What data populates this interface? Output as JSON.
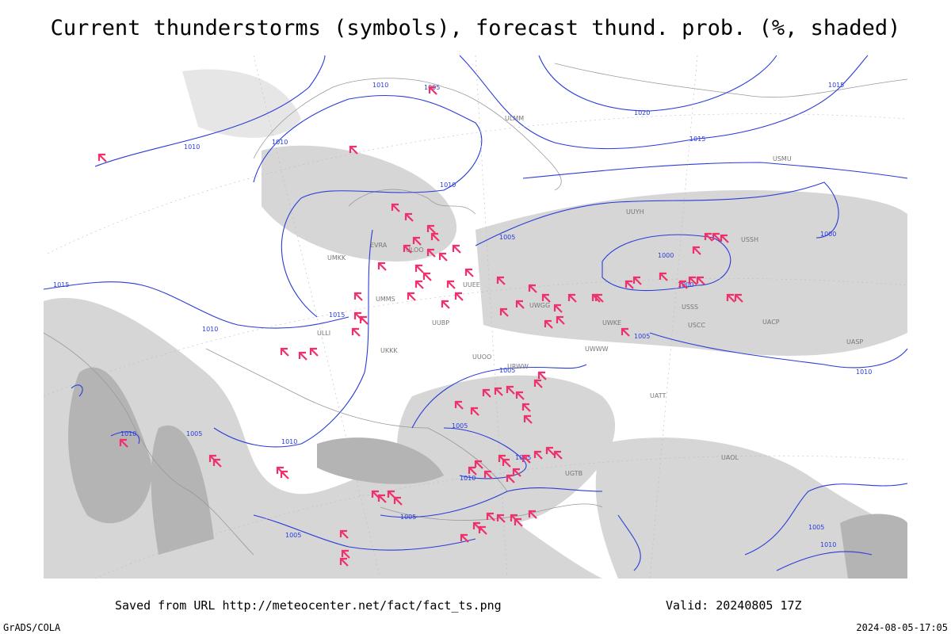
{
  "header": {
    "title": "Current thunderstorms (symbols), forecast thund. prob. (%, shaded)"
  },
  "map": {
    "isobar_labels": [
      "1010",
      "1005",
      "1020",
      "1015",
      "1010",
      "1010",
      "1015",
      "1010",
      "1000",
      "1000",
      "1005",
      "1015",
      "1010",
      "1015",
      "1005",
      "1010",
      "1005",
      "1005",
      "1005",
      "1010",
      "1005",
      "1010",
      "1005",
      "1000",
      "1010",
      "1005",
      "1005",
      "1010"
    ],
    "station_labels": [
      "ULMM",
      "ULOO",
      "UUEE",
      "UWWW",
      "USSS",
      "USCC",
      "UWKE",
      "URWW",
      "UKKK",
      "UMMS",
      "EVRA",
      "UUYH",
      "USSH",
      "UATT",
      "UAOL",
      "UGTB",
      "UUOO",
      "UWGG",
      "UACP",
      "UASP",
      "UMKK",
      "ULLI",
      "USMU",
      "UUBP"
    ]
  },
  "footer": {
    "source": "Saved from URL http://meteocenter.net/fact/fact_ts.png",
    "valid": "Valid: 20240805 17Z",
    "credit": "GrADS/COLA",
    "timestamp": "2024-08-05-17:05"
  }
}
